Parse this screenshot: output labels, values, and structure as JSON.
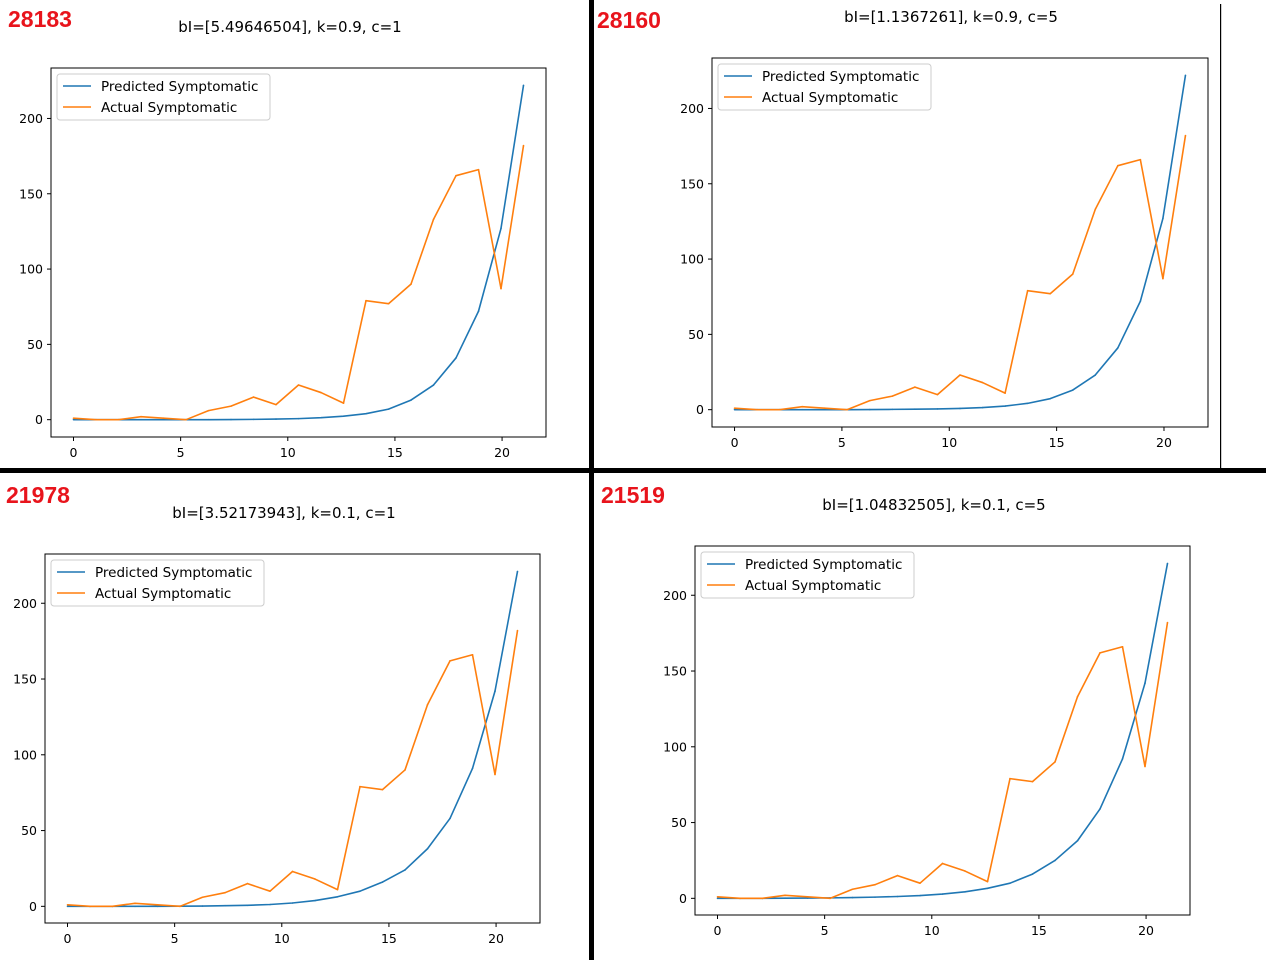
{
  "colors": {
    "predicted": "#1f77b4",
    "actual": "#ff7f0e",
    "divider": "#000000",
    "panel_id": "#e8141c"
  },
  "chart_data": [
    {
      "type": "line",
      "panel_id": "28183",
      "title": "bI=[5.49646504], k=0.9, c=1",
      "xlabel": "",
      "ylabel": "",
      "xlim": [
        -1.05,
        22.05
      ],
      "ylim": [
        -11.5,
        233.5
      ],
      "xticks": [
        0,
        5,
        10,
        15,
        20
      ],
      "yticks": [
        0,
        50,
        100,
        150,
        200
      ],
      "legend": "top-left",
      "x": [
        0,
        1.05,
        2.1,
        3.15,
        4.2,
        5.25,
        6.3,
        7.35,
        8.4,
        9.45,
        10.5,
        11.55,
        12.6,
        13.65,
        14.7,
        15.75,
        16.8,
        17.85,
        18.9,
        19.95,
        21.0
      ],
      "series": [
        {
          "name": "Predicted Symptomatic",
          "values": [
            0,
            0,
            0,
            0,
            0,
            0,
            0,
            0.1,
            0.2,
            0.4,
            0.7,
            1.3,
            2.3,
            4,
            7,
            13,
            23,
            41,
            72,
            127,
            222
          ]
        },
        {
          "name": "Actual Symptomatic",
          "values": [
            1,
            0,
            0,
            2,
            1,
            0,
            6,
            9,
            15,
            10,
            23,
            18,
            11,
            79,
            77,
            90,
            133,
            162,
            166,
            87,
            182
          ]
        }
      ]
    },
    {
      "type": "line",
      "panel_id": "28160",
      "title": "bI=[1.1367261], k=0.9, c=5",
      "xlabel": "",
      "ylabel": "",
      "xlim": [
        -1.05,
        22.05
      ],
      "ylim": [
        -11.5,
        233.5
      ],
      "xticks": [
        0,
        5,
        10,
        15,
        20
      ],
      "yticks": [
        0,
        50,
        100,
        150,
        200
      ],
      "legend": "top-left",
      "x": [
        0,
        1.05,
        2.1,
        3.15,
        4.2,
        5.25,
        6.3,
        7.35,
        8.4,
        9.45,
        10.5,
        11.55,
        12.6,
        13.65,
        14.7,
        15.75,
        16.8,
        17.85,
        18.9,
        19.95,
        21.0
      ],
      "series": [
        {
          "name": "Predicted Symptomatic",
          "values": [
            0,
            0,
            0,
            0,
            0,
            0,
            0.1,
            0.2,
            0.3,
            0.5,
            0.8,
            1.4,
            2.4,
            4.2,
            7.3,
            13,
            23,
            41,
            72,
            127,
            222
          ]
        },
        {
          "name": "Actual Symptomatic",
          "values": [
            1,
            0,
            0,
            2,
            1,
            0,
            6,
            9,
            15,
            10,
            23,
            18,
            11,
            79,
            77,
            90,
            133,
            162,
            166,
            87,
            182
          ]
        }
      ]
    },
    {
      "type": "line",
      "panel_id": "21978",
      "title": "bI=[3.52173943], k=0.1, c=1",
      "xlabel": "",
      "ylabel": "",
      "xlim": [
        -1.05,
        22.05
      ],
      "ylim": [
        -11.0,
        232.5
      ],
      "xticks": [
        0,
        5,
        10,
        15,
        20
      ],
      "yticks": [
        0,
        50,
        100,
        150,
        200
      ],
      "legend": "top-left",
      "x": [
        0,
        1.05,
        2.1,
        3.15,
        4.2,
        5.25,
        6.3,
        7.35,
        8.4,
        9.45,
        10.5,
        11.55,
        12.6,
        13.65,
        14.7,
        15.75,
        16.8,
        17.85,
        18.9,
        19.95,
        21.0
      ],
      "series": [
        {
          "name": "Predicted Symptomatic",
          "values": [
            0,
            0,
            0,
            0,
            0,
            0.1,
            0.2,
            0.4,
            0.7,
            1.2,
            2.2,
            3.8,
            6.3,
            10,
            16,
            24,
            38,
            58,
            91,
            142,
            221
          ]
        },
        {
          "name": "Actual Symptomatic",
          "values": [
            1,
            0,
            0,
            2,
            1,
            0,
            6,
            9,
            15,
            10,
            23,
            18,
            11,
            79,
            77,
            90,
            133,
            162,
            166,
            87,
            182
          ]
        }
      ]
    },
    {
      "type": "line",
      "panel_id": "21519",
      "title": "bI=[1.04832505], k=0.1, c=5",
      "xlabel": "",
      "ylabel": "",
      "xlim": [
        -1.05,
        22.05
      ],
      "ylim": [
        -11.0,
        232.5
      ],
      "xticks": [
        0,
        5,
        10,
        15,
        20
      ],
      "yticks": [
        0,
        50,
        100,
        150,
        200
      ],
      "legend": "top-left",
      "x": [
        0,
        1.05,
        2.1,
        3.15,
        4.2,
        5.25,
        6.3,
        7.35,
        8.4,
        9.45,
        10.5,
        11.55,
        12.6,
        13.65,
        14.7,
        15.75,
        16.8,
        17.85,
        18.9,
        19.95,
        21.0
      ],
      "series": [
        {
          "name": "Predicted Symptomatic",
          "values": [
            0,
            0,
            0,
            0.1,
            0.2,
            0.3,
            0.5,
            0.8,
            1.2,
            1.8,
            2.8,
            4.3,
            6.6,
            10,
            16,
            25,
            38,
            59,
            92,
            142,
            221
          ]
        },
        {
          "name": "Actual Symptomatic",
          "values": [
            1,
            0,
            0,
            2,
            1,
            0,
            6,
            9,
            15,
            10,
            23,
            18,
            11,
            79,
            77,
            90,
            133,
            162,
            166,
            87,
            182
          ]
        }
      ]
    }
  ]
}
